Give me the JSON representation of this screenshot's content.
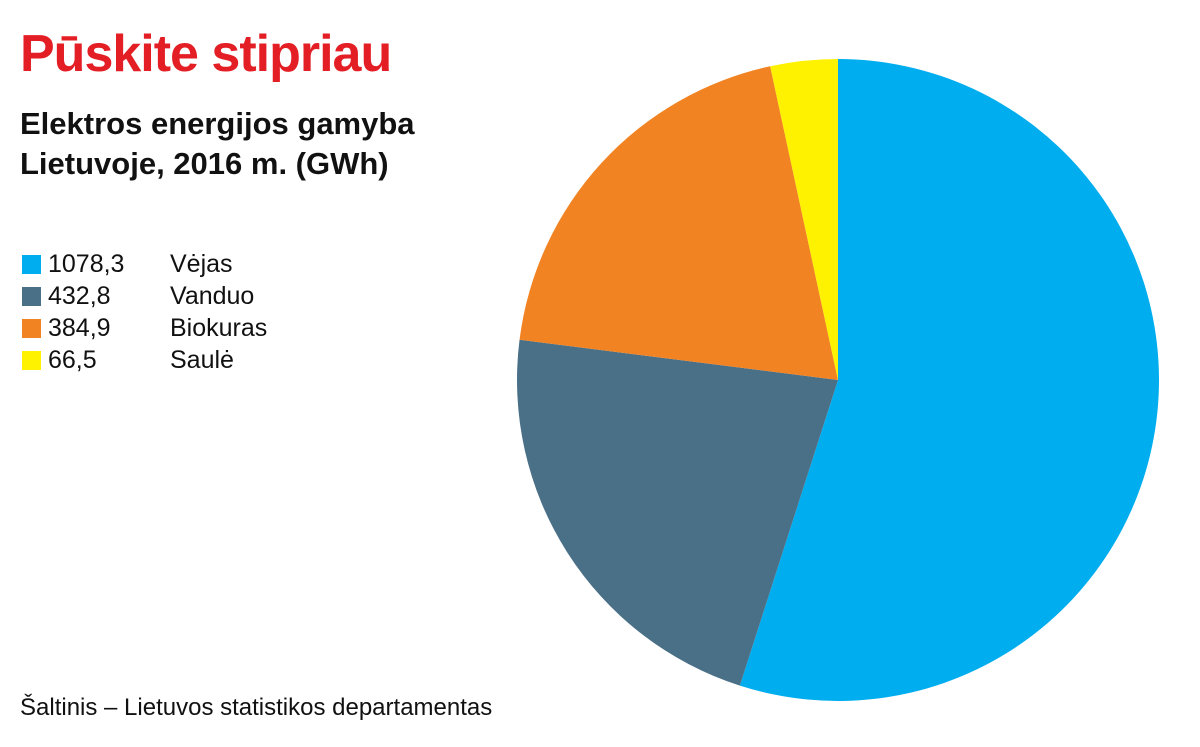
{
  "header": {
    "title": "Pūskite stipriau",
    "subtitle": "Elektros energijos gamyba Lietuvoje, 2016 m. (GWh)"
  },
  "colors": {
    "title": "#E31E24",
    "text": "#111111",
    "background": "#FFFFFF"
  },
  "legend": {
    "items": [
      {
        "value_label": "1078,3",
        "label": "Vėjas",
        "color": "#00ADEE"
      },
      {
        "value_label": "432,8",
        "label": "Vanduo",
        "color": "#4A7088"
      },
      {
        "value_label": "384,9",
        "label": "Biokuras",
        "color": "#F28322"
      },
      {
        "value_label": "66,5",
        "label": "Saulė",
        "color": "#FFF200"
      }
    ]
  },
  "footer": {
    "source": "Šaltinis – Lietuvos statistikos departamentas"
  },
  "chart_data": {
    "type": "pie",
    "title": "Pūskite stipriau",
    "subtitle": "Elektros energijos gamyba Lietuvoje, 2016 m. (GWh)",
    "categories": [
      "Vėjas",
      "Vanduo",
      "Biokuras",
      "Saulė"
    ],
    "values": [
      1078.3,
      432.8,
      384.9,
      66.5
    ],
    "colors": [
      "#00ADEE",
      "#4A7088",
      "#F28322",
      "#FFF200"
    ],
    "legend": "left",
    "start_angle": "top",
    "direction": "clockwise"
  }
}
